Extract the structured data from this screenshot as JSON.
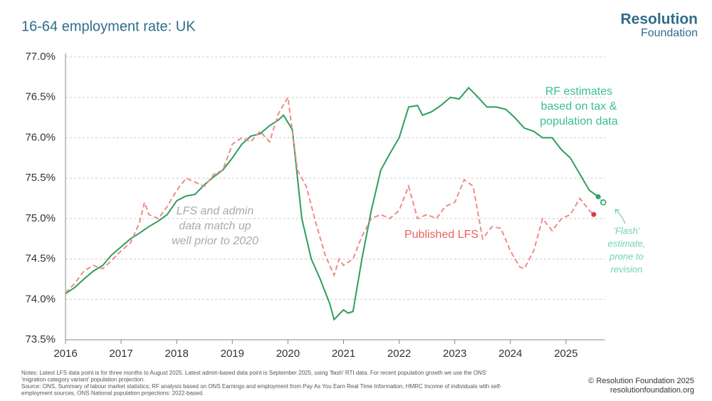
{
  "chart_data": {
    "type": "line",
    "title": "16-64 employment rate: UK",
    "xlim": [
      2016,
      2025.7
    ],
    "xticks": [
      2016,
      2017,
      2018,
      2019,
      2020,
      2021,
      2022,
      2023,
      2024,
      2025
    ],
    "ylim": [
      73.5,
      77.0
    ],
    "yticks": [
      {
        "value": 73.5,
        "label": "73.5%"
      },
      {
        "value": 74.0,
        "label": "74.0%"
      },
      {
        "value": 74.5,
        "label": "74.5%"
      },
      {
        "value": 75.0,
        "label": "75.0%"
      },
      {
        "value": 75.5,
        "label": "75.5%"
      },
      {
        "value": 76.0,
        "label": "76.0%"
      },
      {
        "value": 76.5,
        "label": "76.5%"
      },
      {
        "value": 77.0,
        "label": "77.0%"
      }
    ],
    "grid": true,
    "series": [
      {
        "name": "RF estimates based on tax & population data",
        "color": "#2e9e5b",
        "dash": false,
        "x": [
          2016.0,
          2016.17,
          2016.33,
          2016.5,
          2016.67,
          2016.83,
          2017.0,
          2017.17,
          2017.33,
          2017.5,
          2017.67,
          2017.83,
          2018.0,
          2018.17,
          2018.33,
          2018.5,
          2018.67,
          2018.83,
          2019.0,
          2019.17,
          2019.33,
          2019.5,
          2019.67,
          2019.83,
          2019.92,
          2020.08,
          2020.25,
          2020.42,
          2020.58,
          2020.75,
          2020.83,
          2021.0,
          2021.08,
          2021.17,
          2021.33,
          2021.5,
          2021.67,
          2021.83,
          2022.0,
          2022.17,
          2022.33,
          2022.42,
          2022.58,
          2022.75,
          2022.92,
          2023.08,
          2023.25,
          2023.42,
          2023.58,
          2023.75,
          2023.92,
          2024.08,
          2024.25,
          2024.42,
          2024.58,
          2024.75,
          2024.92,
          2025.08,
          2025.25,
          2025.42,
          2025.58
        ],
        "values": [
          74.07,
          74.15,
          74.25,
          74.35,
          74.42,
          74.55,
          74.65,
          74.75,
          74.82,
          74.9,
          74.97,
          75.05,
          75.22,
          75.28,
          75.3,
          75.42,
          75.52,
          75.6,
          75.75,
          75.92,
          76.02,
          76.05,
          76.15,
          76.22,
          76.28,
          76.1,
          75.0,
          74.5,
          74.25,
          73.95,
          73.75,
          73.87,
          73.83,
          73.85,
          74.5,
          75.1,
          75.6,
          75.8,
          76.0,
          76.38,
          76.4,
          76.28,
          76.32,
          76.4,
          76.5,
          76.48,
          76.62,
          76.5,
          76.38,
          76.38,
          76.35,
          76.25,
          76.12,
          76.08,
          76.0,
          76.0,
          75.85,
          75.75,
          75.55,
          75.35,
          75.27
        ]
      },
      {
        "name": "Published LFS",
        "color": "#f08a8a",
        "dash": true,
        "x": [
          2016.0,
          2016.17,
          2016.33,
          2016.5,
          2016.67,
          2016.83,
          2017.0,
          2017.17,
          2017.33,
          2017.42,
          2017.5,
          2017.67,
          2017.83,
          2018.0,
          2018.17,
          2018.33,
          2018.5,
          2018.67,
          2018.83,
          2019.0,
          2019.17,
          2019.33,
          2019.5,
          2019.67,
          2019.83,
          2020.0,
          2020.17,
          2020.33,
          2020.5,
          2020.67,
          2020.83,
          2020.92,
          2021.0,
          2021.17,
          2021.33,
          2021.5,
          2021.67,
          2021.83,
          2022.0,
          2022.17,
          2022.33,
          2022.5,
          2022.67,
          2022.83,
          2023.0,
          2023.17,
          2023.33,
          2023.5,
          2023.67,
          2023.83,
          2024.0,
          2024.17,
          2024.25,
          2024.42,
          2024.58,
          2024.75,
          2024.92,
          2025.08,
          2025.25,
          2025.42,
          2025.5
        ],
        "values": [
          74.08,
          74.2,
          74.35,
          74.42,
          74.38,
          74.48,
          74.6,
          74.7,
          74.95,
          75.2,
          75.05,
          75.0,
          75.15,
          75.35,
          75.5,
          75.45,
          75.4,
          75.55,
          75.6,
          75.92,
          76.0,
          75.95,
          76.08,
          75.95,
          76.3,
          76.5,
          75.6,
          75.4,
          74.95,
          74.55,
          74.3,
          74.5,
          74.42,
          74.5,
          74.78,
          75.0,
          75.05,
          75.0,
          75.1,
          75.4,
          75.0,
          75.05,
          75.0,
          75.15,
          75.2,
          75.48,
          75.4,
          74.75,
          74.9,
          74.88,
          74.6,
          74.4,
          74.38,
          74.6,
          75.0,
          74.85,
          75.0,
          75.05,
          75.25,
          75.1,
          75.05
        ]
      }
    ],
    "flash_point": {
      "x": 2025.67,
      "y": 75.2,
      "color": "#2e9e5b"
    },
    "annotations": {
      "rf": [
        "RF estimates",
        "based on tax &",
        "population data"
      ],
      "match": [
        "LFS and admin",
        "data match up",
        "well prior to 2020"
      ],
      "lfs": "Published LFS",
      "flash": [
        "'Flash'",
        "estimate,",
        "prone to",
        "revision"
      ]
    },
    "notes": [
      "Notes: Latest LFS data point is for three months to August 2025. Latest admin-based data point is September 2025, using 'flash' RTI data. For recent population growth we use the ONS'",
      "'migration category variant' population projection.",
      "Source: ONS, Summary of labour market statistics; RF analysis based on ONS Earnings and employment from Pay As You Earn Real Time Information, HMRC Income of individuals with self-",
      "employment sources, ONS National population projections: 2022-based."
    ],
    "copyright": [
      "© Resolution Foundation 2025",
      "resolutionfoundation.org"
    ],
    "logo": [
      "Resolution",
      "Foundation"
    ]
  }
}
